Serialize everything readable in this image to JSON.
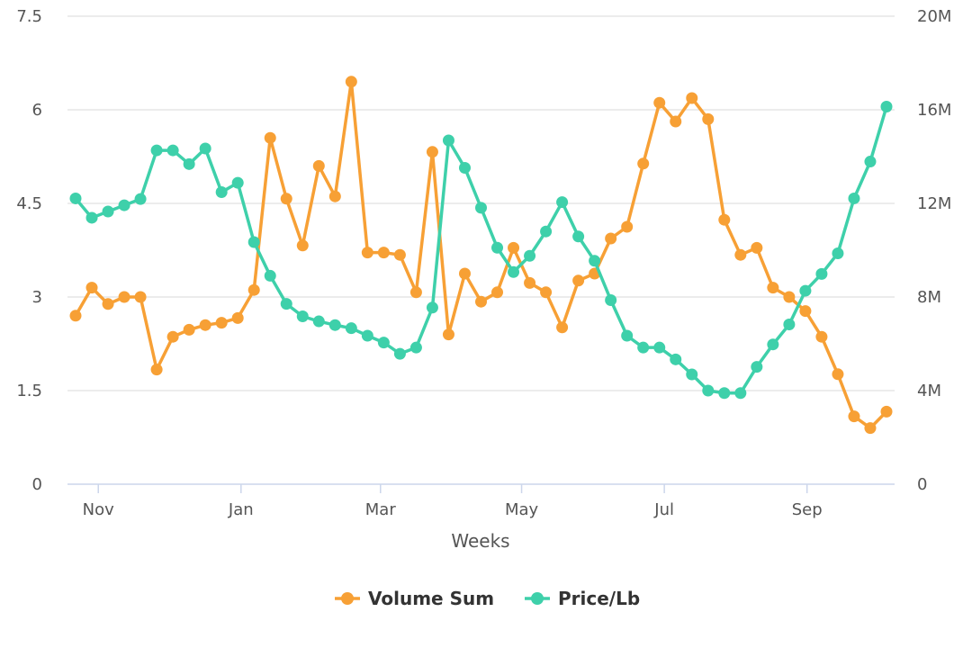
{
  "chart_data": {
    "type": "line",
    "xlabel": "Weeks",
    "x_tick_labels": [
      "Nov",
      "Jan",
      "Mar",
      "May",
      "Jul",
      "Sep"
    ],
    "x_tick_positions": [
      1.4,
      10.2,
      18.8,
      27.5,
      36.3,
      45.1
    ],
    "y_left": {
      "ylim": [
        0,
        7.5
      ],
      "ticks": [
        0,
        1.5,
        3,
        4.5,
        6,
        7.5
      ],
      "tick_labels": [
        "0",
        "1.5",
        "3",
        "4.5",
        "6",
        "7.5"
      ]
    },
    "y_right": {
      "ylim": [
        0,
        20000000
      ],
      "ticks": [
        0,
        4000000,
        8000000,
        12000000,
        16000000,
        20000000
      ],
      "tick_labels": [
        "0",
        "4M",
        "8M",
        "12M",
        "16M",
        "20M"
      ]
    },
    "grid": true,
    "legend_position": "bottom-center",
    "series": [
      {
        "name": "Volume Sum",
        "axis": "right",
        "color": "#f7a035",
        "values": [
          7200000,
          8400000,
          7700000,
          8000000,
          8000000,
          4900000,
          6300000,
          6600000,
          6800000,
          6900000,
          7100000,
          8300000,
          14800000,
          12200000,
          10200000,
          13600000,
          12300000,
          17200000,
          9900000,
          9900000,
          9800000,
          8200000,
          14200000,
          6400000,
          9000000,
          7800000,
          8200000,
          10100000,
          8600000,
          8200000,
          6700000,
          8700000,
          9000000,
          10500000,
          11000000,
          13700000,
          16300000,
          15500000,
          16500000,
          15600000,
          11300000,
          9800000,
          10100000,
          8400000,
          8000000,
          7400000,
          6300000,
          4700000,
          2900000,
          2400000,
          3100000
        ]
      },
      {
        "name": "Price/Lb",
        "axis": "left",
        "color": "#3ed0aa",
        "values": [
          4.58,
          4.27,
          4.37,
          4.47,
          4.57,
          5.35,
          5.35,
          5.13,
          5.38,
          4.68,
          4.83,
          3.88,
          3.34,
          2.89,
          2.69,
          2.61,
          2.55,
          2.5,
          2.38,
          2.27,
          2.09,
          2.19,
          2.83,
          5.51,
          5.07,
          4.43,
          3.79,
          3.4,
          3.66,
          4.05,
          4.52,
          3.97,
          3.58,
          2.95,
          2.38,
          2.19,
          2.19,
          2.0,
          1.76,
          1.5,
          1.46,
          1.46,
          1.88,
          2.24,
          2.56,
          3.1,
          3.37,
          3.7,
          4.58,
          5.17,
          6.05
        ]
      }
    ]
  }
}
